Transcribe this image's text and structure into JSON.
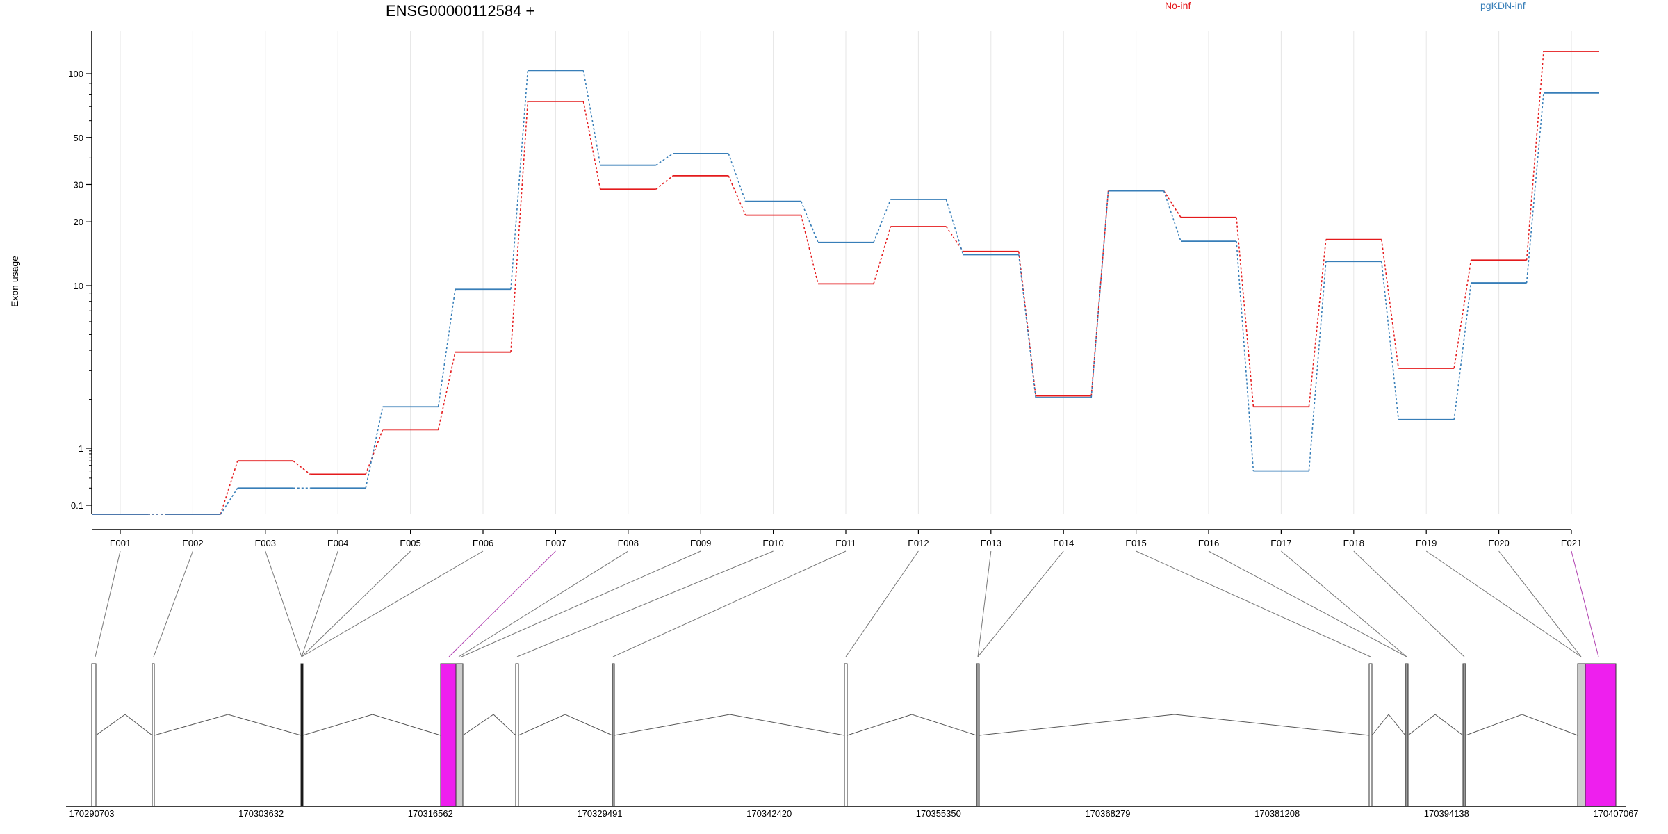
{
  "chart_data": {
    "type": "line",
    "title": "ENSG00000112584 +",
    "ylabel": "Exon usage",
    "xlabel": "",
    "y_scale": "log",
    "y_ticks": [
      0.1,
      1,
      10,
      20,
      30,
      50,
      100
    ],
    "y_tick_labels": [
      "0.1",
      "1",
      "10",
      "20",
      "30",
      "50",
      "100"
    ],
    "categories": [
      "E001",
      "E002",
      "E003",
      "E004",
      "E005",
      "E006",
      "E007",
      "E008",
      "E009",
      "E010",
      "E011",
      "E012",
      "E013",
      "E014",
      "E015",
      "E016",
      "E017",
      "E018",
      "E019",
      "E020",
      "E021"
    ],
    "series": [
      {
        "name": "No-inf",
        "color": "#e41a1c",
        "values": [
          0.05,
          0.05,
          0.6,
          0.35,
          1.3,
          3.9,
          74,
          28.5,
          33,
          21.5,
          10.2,
          19,
          14.5,
          2.1,
          28,
          21,
          1.8,
          16.5,
          3.1,
          13.2,
          140
        ]
      },
      {
        "name": "pgKDN-inf",
        "color": "#377eb8",
        "values": [
          0.05,
          0.05,
          0.2,
          0.2,
          1.8,
          9.5,
          105,
          37,
          42,
          25,
          16,
          25.5,
          14,
          2.05,
          28,
          16.2,
          0.4,
          13,
          1.5,
          10.3,
          81
        ]
      }
    ],
    "legend_placement": "top",
    "grid": true,
    "gene_model": {
      "coordinate_labels": [
        "170290703",
        "170303632",
        "170316562",
        "170329491",
        "170342420",
        "170355350",
        "170368279",
        "170381208",
        "170394138",
        "170407067"
      ]
    }
  }
}
